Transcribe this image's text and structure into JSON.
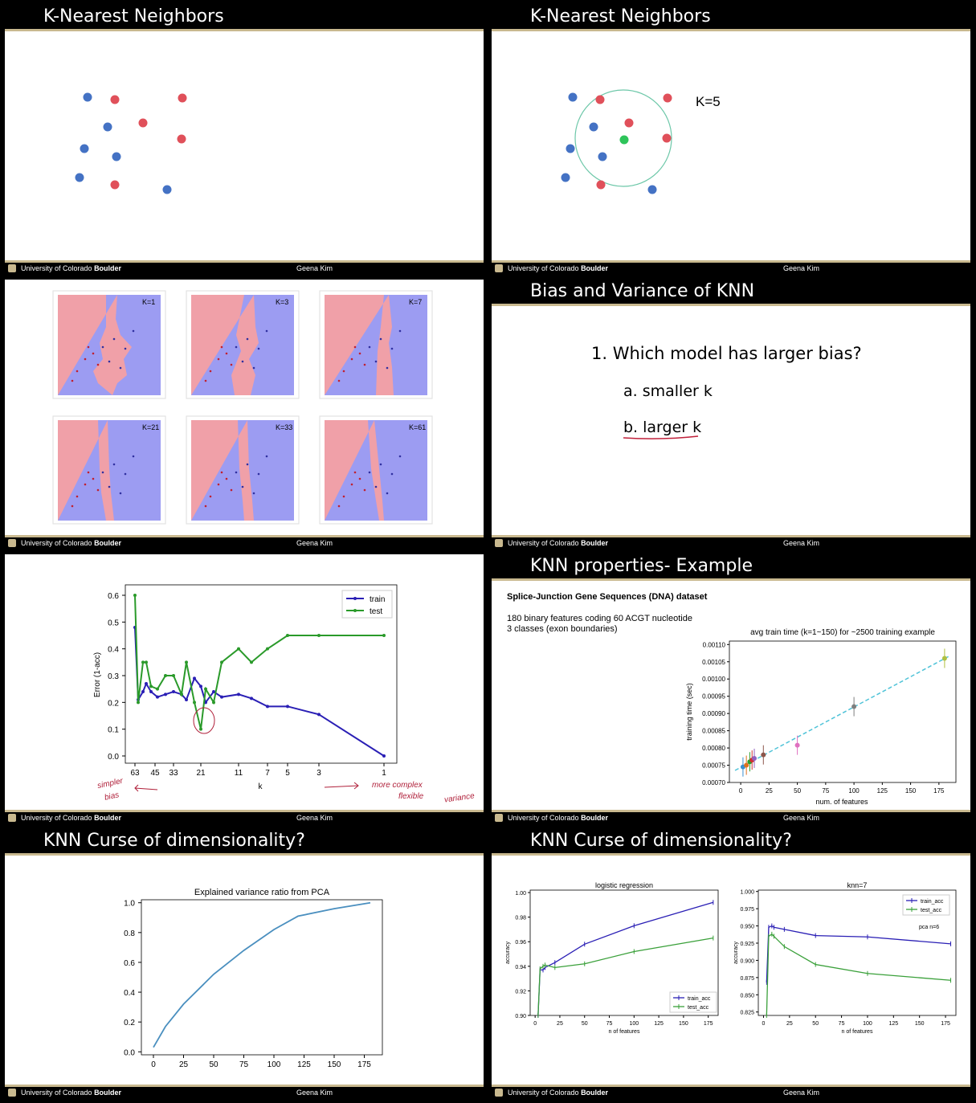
{
  "footer": {
    "university": "University of Colorado",
    "university_bold": "Boulder",
    "author": "Geena Kim"
  },
  "slide1": {
    "title": "K-Nearest Neighbors"
  },
  "slide2": {
    "title": "K-Nearest Neighbors",
    "k_label": "K=5"
  },
  "slide3": {
    "panel_labels": [
      "K=1",
      "K=3",
      "K=7",
      "K=21",
      "K=33",
      "K=61"
    ]
  },
  "slide4": {
    "title": "Bias and Variance of KNN",
    "question": "1. Which model has larger bias?",
    "option_a": "a. smaller k",
    "option_b": "b. larger k"
  },
  "slide5": {
    "annotation_left_1": "simpler",
    "annotation_left_2": "bias",
    "annotation_right_1": "more complex",
    "annotation_right_2": "flexible",
    "annotation_right_3": "variance",
    "chart_data": {
      "type": "line",
      "xlabel": "k",
      "ylabel": "Error (1-acc)",
      "x_tick_labels": [
        "63",
        "45",
        "33",
        "21",
        "11",
        "7",
        "5",
        "3",
        "1"
      ],
      "y_ticks": [
        "0.0",
        "0.1",
        "0.2",
        "0.3",
        "0.4",
        "0.5",
        "0.6"
      ],
      "ylim": [
        0,
        0.6
      ],
      "legend_position": "top-right",
      "series": [
        {
          "name": "train",
          "color": "#2a1fb5",
          "values": [
            0.48,
            0.21,
            0.24,
            0.27,
            0.24,
            0.22,
            0.23,
            0.24,
            0.23,
            0.21,
            0.29,
            0.26,
            0.2,
            0.24,
            0.22,
            0.23,
            0.215,
            0.185,
            0.185,
            0.155,
            0.0
          ]
        },
        {
          "name": "test",
          "color": "#2a9a2a",
          "values": [
            0.6,
            0.2,
            0.35,
            0.35,
            0.26,
            0.25,
            0.3,
            0.3,
            0.23,
            0.35,
            0.2,
            0.1,
            0.25,
            0.2,
            0.35,
            0.4,
            0.35,
            0.4,
            0.45,
            0.45,
            0.45
          ]
        }
      ]
    }
  },
  "slide6": {
    "title": "KNN properties- Example",
    "dataset": "Splice-Junction Gene Sequences (DNA) dataset",
    "desc1": "180 binary features coding 60 ACGT nucleotide",
    "desc2": "3 classes (exon boundaries)",
    "chart_data": {
      "type": "scatter",
      "title": "avg train time (k=1~150) for ~2500 training example",
      "xlabel": "num. of features",
      "ylabel": "training time (sec)",
      "xlim": [
        -10,
        190
      ],
      "ylim": [
        0.0007,
        0.00111
      ],
      "x_ticks": [
        "0",
        "25",
        "50",
        "75",
        "100",
        "125",
        "150",
        "175"
      ],
      "y_ticks": [
        "0.00070",
        "0.00075",
        "0.00080",
        "0.00085",
        "0.00090",
        "0.00095",
        "0.00100",
        "0.00105",
        "0.00110"
      ],
      "points": [
        {
          "x": 2,
          "y": 0.000745,
          "color": "#3a8fd0"
        },
        {
          "x": 5,
          "y": 0.00075,
          "color": "#e07020"
        },
        {
          "x": 8,
          "y": 0.00076,
          "color": "#2aa02a"
        },
        {
          "x": 10,
          "y": 0.000765,
          "color": "#d03030"
        },
        {
          "x": 12,
          "y": 0.00077,
          "color": "#9060c0"
        },
        {
          "x": 20,
          "y": 0.00078,
          "color": "#8c564b"
        },
        {
          "x": 50,
          "y": 0.000808,
          "color": "#e070c0"
        },
        {
          "x": 100,
          "y": 0.00092,
          "color": "#7f7f7f"
        },
        {
          "x": 180,
          "y": 0.00106,
          "color": "#b0c040"
        }
      ]
    }
  },
  "slide7": {
    "title": "KNN Curse of dimensionality?",
    "chart_data": {
      "type": "line",
      "title": "Explained variance ratio from PCA",
      "x_ticks": [
        "0",
        "25",
        "50",
        "75",
        "100",
        "125",
        "150",
        "175"
      ],
      "y_ticks": [
        "0.0",
        "0.2",
        "0.4",
        "0.6",
        "0.8",
        "1.0"
      ],
      "xlim": [
        -10,
        190
      ],
      "ylim": [
        -0.02,
        1.02
      ],
      "x": [
        0,
        10,
        25,
        50,
        75,
        100,
        120,
        150,
        180
      ],
      "y": [
        0.03,
        0.17,
        0.32,
        0.52,
        0.68,
        0.82,
        0.91,
        0.96,
        1.0
      ]
    }
  },
  "slide8": {
    "title": "KNN Curse of dimensionality?",
    "charts": [
      {
        "type": "line",
        "title": "logistic regression",
        "xlabel": "n of features",
        "ylabel": "accuracy",
        "x_ticks": [
          "0",
          "25",
          "50",
          "75",
          "100",
          "125",
          "150",
          "175"
        ],
        "y_ticks": [
          "0.90",
          "0.92",
          "0.94",
          "0.96",
          "0.98",
          "1.00"
        ],
        "xlim": [
          -5,
          185
        ],
        "ylim": [
          0.9,
          1.002
        ],
        "x": [
          3,
          5,
          8,
          10,
          20,
          50,
          100,
          180
        ],
        "series": [
          {
            "name": "train_acc",
            "color": "#2a1fb5",
            "values": [
              0.9,
              0.937,
              0.937,
              0.939,
              0.943,
              0.958,
              0.973,
              0.992
            ]
          },
          {
            "name": "test_acc",
            "color": "#3aa03a",
            "values": [
              0.9,
              0.938,
              0.94,
              0.941,
              0.939,
              0.942,
              0.952,
              0.963
            ]
          }
        ]
      },
      {
        "type": "line",
        "title": "knn=7",
        "xlabel": "n of features",
        "ylabel": "accuracy",
        "annotation": "pca n=6",
        "x_ticks": [
          "0",
          "25",
          "50",
          "75",
          "100",
          "125",
          "150",
          "175"
        ],
        "y_ticks": [
          "0.825",
          "0.850",
          "0.875",
          "0.900",
          "0.925",
          "0.950",
          "0.975",
          "1.000"
        ],
        "xlim": [
          -5,
          185
        ],
        "ylim": [
          0.82,
          1.002
        ],
        "x": [
          3,
          5,
          8,
          10,
          20,
          50,
          100,
          180
        ],
        "series": [
          {
            "name": "train_acc",
            "color": "#2a1fb5",
            "values": [
              0.868,
              0.948,
              0.95,
              0.948,
              0.945,
              0.936,
              0.934,
              0.924
            ]
          },
          {
            "name": "test_acc",
            "color": "#3aa03a",
            "values": [
              0.82,
              0.935,
              0.938,
              0.935,
              0.92,
              0.894,
              0.881,
              0.871
            ]
          }
        ]
      }
    ]
  }
}
